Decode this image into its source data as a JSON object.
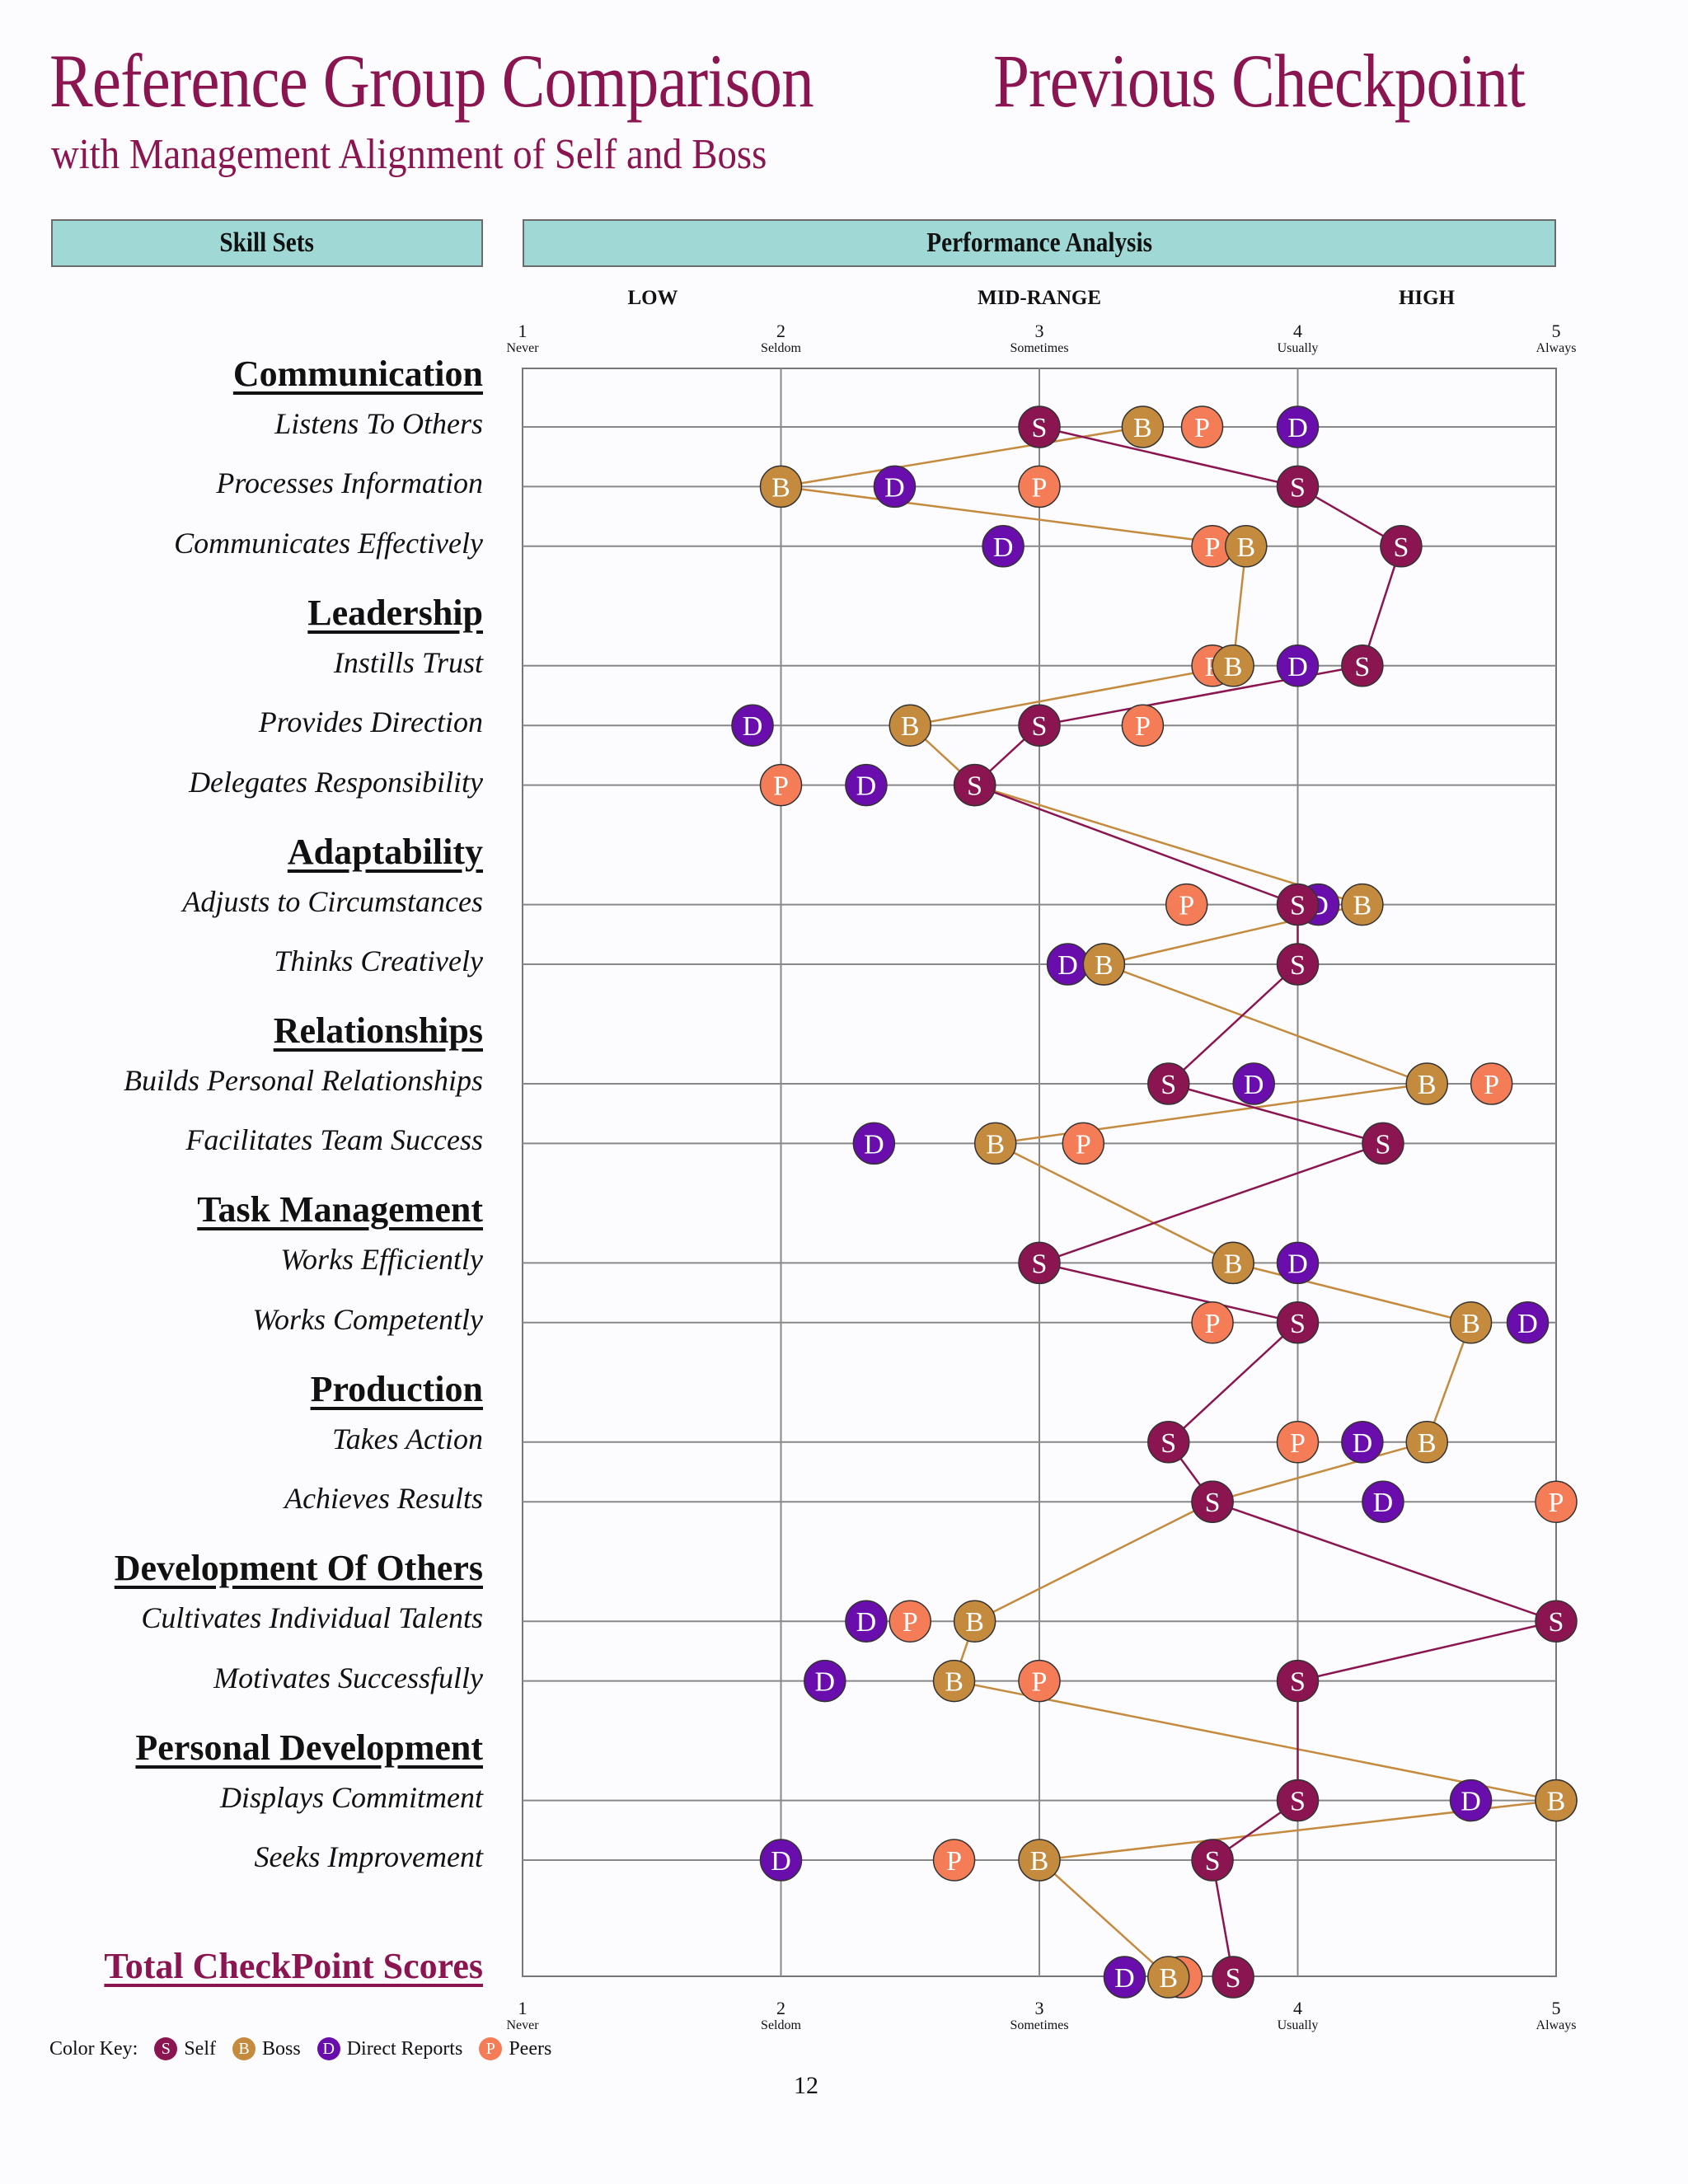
{
  "title": "Reference Group Comparison",
  "title_right": "Previous Checkpoint",
  "subtitle": "with Management Alignment of Self and Boss",
  "headers": {
    "skill_sets": "Skill Sets",
    "performance": "Performance Analysis"
  },
  "ranges": {
    "low": "LOW",
    "mid": "MID-RANGE",
    "high": "HIGH"
  },
  "scale": [
    {
      "num": "1",
      "label": "Never"
    },
    {
      "num": "2",
      "label": "Seldom"
    },
    {
      "num": "3",
      "label": "Sometimes"
    },
    {
      "num": "4",
      "label": "Usually"
    },
    {
      "num": "5",
      "label": "Always"
    }
  ],
  "colors": {
    "self": "#8a1550",
    "boss": "#c48a3e",
    "direct": "#6a0dad",
    "peers": "#f47d57"
  },
  "chart_data": {
    "type": "scatter",
    "xlim": [
      1,
      5
    ],
    "series_keys": [
      "self",
      "boss",
      "direct",
      "peers"
    ],
    "series_names": {
      "self": "Self",
      "boss": "Boss",
      "direct": "Direct Reports",
      "peers": "Peers"
    },
    "letters": {
      "self": "S",
      "boss": "B",
      "direct": "D",
      "peers": "P"
    },
    "categories": [
      {
        "name": "Communication",
        "skills": [
          {
            "name": "Listens To Others",
            "self": 3.0,
            "boss": 3.4,
            "direct": 4.0,
            "peers": 3.63
          },
          {
            "name": "Processes Information",
            "self": 4.0,
            "boss": 2.0,
            "direct": 2.44,
            "peers": 3.0
          },
          {
            "name": "Communicates Effectively",
            "self": 4.4,
            "boss": 3.8,
            "direct": 2.86,
            "peers": 3.67
          }
        ]
      },
      {
        "name": "Leadership",
        "skills": [
          {
            "name": "Instills Trust",
            "self": 4.25,
            "boss": 3.75,
            "direct": 4.0,
            "peers": 3.67
          },
          {
            "name": "Provides Direction",
            "self": 3.0,
            "boss": 2.5,
            "direct": 1.89,
            "peers": 3.4
          },
          {
            "name": "Delegates Responsibility",
            "self": 2.75,
            "boss": 2.75,
            "direct": 2.33,
            "peers": 2.0
          }
        ]
      },
      {
        "name": "Adaptability",
        "skills": [
          {
            "name": "Adjusts to Circumstances",
            "self": 4.0,
            "boss": 4.25,
            "direct": 4.08,
            "peers": 3.57
          },
          {
            "name": "Thinks Creatively",
            "self": 4.0,
            "boss": 3.25,
            "direct": 3.11,
            "peers": 3.25
          }
        ]
      },
      {
        "name": "Relationships",
        "skills": [
          {
            "name": "Builds Personal Relationships",
            "self": 3.5,
            "boss": 4.5,
            "direct": 3.83,
            "peers": 4.75
          },
          {
            "name": "Facilitates Team Success",
            "self": 4.33,
            "boss": 2.83,
            "direct": 2.36,
            "peers": 3.17
          }
        ]
      },
      {
        "name": "Task Management",
        "skills": [
          {
            "name": "Works Efficiently",
            "self": 3.0,
            "boss": 3.75,
            "direct": 4.0,
            "peers": 3.75
          },
          {
            "name": "Works Competently",
            "self": 4.0,
            "boss": 4.67,
            "direct": 4.89,
            "peers": 3.67
          }
        ]
      },
      {
        "name": "Production",
        "skills": [
          {
            "name": "Takes Action",
            "self": 3.5,
            "boss": 4.5,
            "direct": 4.25,
            "peers": 4.0
          },
          {
            "name": "Achieves Results",
            "self": 3.67,
            "boss": 3.67,
            "direct": 4.33,
            "peers": 5.0
          }
        ]
      },
      {
        "name": "Development Of Others",
        "skills": [
          {
            "name": "Cultivates Individual Talents",
            "self": 5.0,
            "boss": 2.75,
            "direct": 2.33,
            "peers": 2.5
          },
          {
            "name": "Motivates Successfully",
            "self": 4.0,
            "boss": 2.67,
            "direct": 2.17,
            "peers": 3.0
          }
        ]
      },
      {
        "name": "Personal Development",
        "skills": [
          {
            "name": "Displays Commitment",
            "self": 4.0,
            "boss": 5.0,
            "direct": 4.67,
            "peers": 5.0
          },
          {
            "name": "Seeks Improvement",
            "self": 3.67,
            "boss": 3.0,
            "direct": 2.0,
            "peers": 2.67
          }
        ]
      }
    ],
    "total": {
      "name": "Total CheckPoint Scores",
      "self": 3.75,
      "boss": 3.5,
      "direct": 3.33,
      "peers": 3.55
    }
  },
  "color_key": {
    "label": "Color Key:",
    "self": "Self",
    "boss": "Boss",
    "direct": "Direct Reports",
    "peers": "Peers"
  },
  "page_number": "12"
}
